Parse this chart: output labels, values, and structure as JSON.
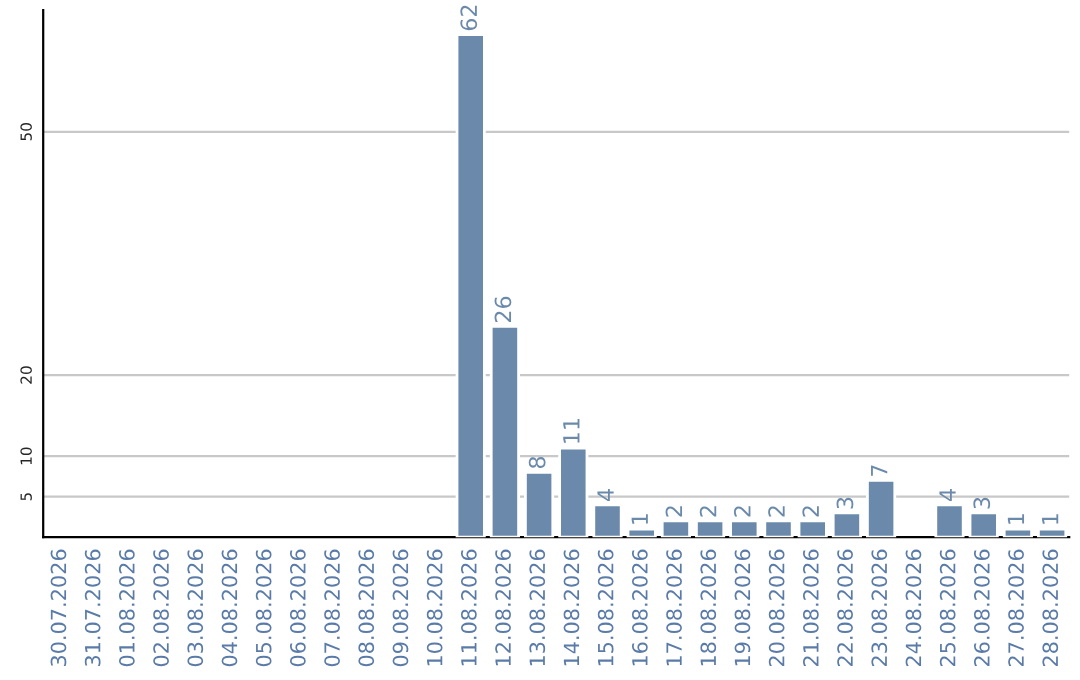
{
  "chart_data": {
    "type": "bar",
    "categories": [
      "30.07.2026",
      "31.07.2026",
      "01.08.2026",
      "02.08.2026",
      "03.08.2026",
      "04.08.2026",
      "05.08.2026",
      "06.08.2026",
      "07.08.2026",
      "08.08.2026",
      "09.08.2026",
      "10.08.2026",
      "11.08.2026",
      "12.08.2026",
      "13.08.2026",
      "14.08.2026",
      "15.08.2026",
      "16.08.2026",
      "17.08.2026",
      "18.08.2026",
      "19.08.2026",
      "20.08.2026",
      "21.08.2026",
      "22.08.2026",
      "23.08.2026",
      "24.08.2026",
      "25.08.2026",
      "26.08.2026",
      "27.08.2026",
      "28.08.2026"
    ],
    "values": [
      null,
      null,
      null,
      null,
      null,
      null,
      null,
      null,
      null,
      null,
      null,
      null,
      62,
      26,
      8,
      11,
      4,
      1,
      2,
      2,
      2,
      2,
      2,
      3,
      7,
      null,
      4,
      3,
      1,
      1
    ],
    "color": "#6b8aab",
    "ylim": [
      0,
      65
    ],
    "yticks": [
      5,
      10,
      20,
      50
    ],
    "grid": "y",
    "data_labels": true
  }
}
